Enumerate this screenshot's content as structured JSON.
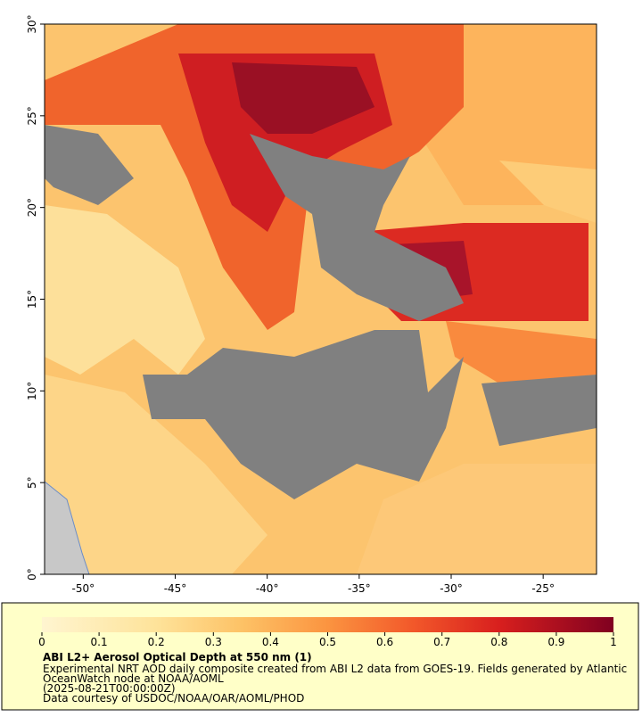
{
  "chart_data": {
    "type": "map",
    "xlim": [
      -52.1,
      -22.1
    ],
    "ylim": [
      0,
      30
    ],
    "xticks": [
      {
        "value": -50,
        "label": "-50°"
      },
      {
        "value": -45,
        "label": "-45°"
      },
      {
        "value": -40,
        "label": "-40°"
      },
      {
        "value": -35,
        "label": "-35°"
      },
      {
        "value": -30,
        "label": "-30°"
      },
      {
        "value": -25,
        "label": "-25°"
      }
    ],
    "yticks": [
      {
        "value": 0,
        "label": "0°"
      },
      {
        "value": 5,
        "label": "5°"
      },
      {
        "value": 10,
        "label": "10°"
      },
      {
        "value": 15,
        "label": "15°"
      },
      {
        "value": 20,
        "label": "20°"
      },
      {
        "value": 25,
        "label": "25°"
      },
      {
        "value": 30,
        "label": "30°"
      }
    ],
    "colorbar": {
      "lim": [
        0,
        1
      ],
      "ticks": [
        0,
        0.1,
        0.2,
        0.3,
        0.4,
        0.5,
        0.6,
        0.7,
        0.8,
        0.9,
        1
      ]
    },
    "title": "ABI L2+ Aerosol Optical Depth at 550 nm (1)",
    "description": [
      "Experimental NRT AOD daily composite created from ABI L2 data from GOES-19. Fields generated by Atlantic",
      "OceanWatch node at NOAA/AOML",
      "(2025-08-21T00:00:00Z)",
      "Data courtesy of USDOC/NOAA/OAR/AOML/PHOD"
    ]
  }
}
